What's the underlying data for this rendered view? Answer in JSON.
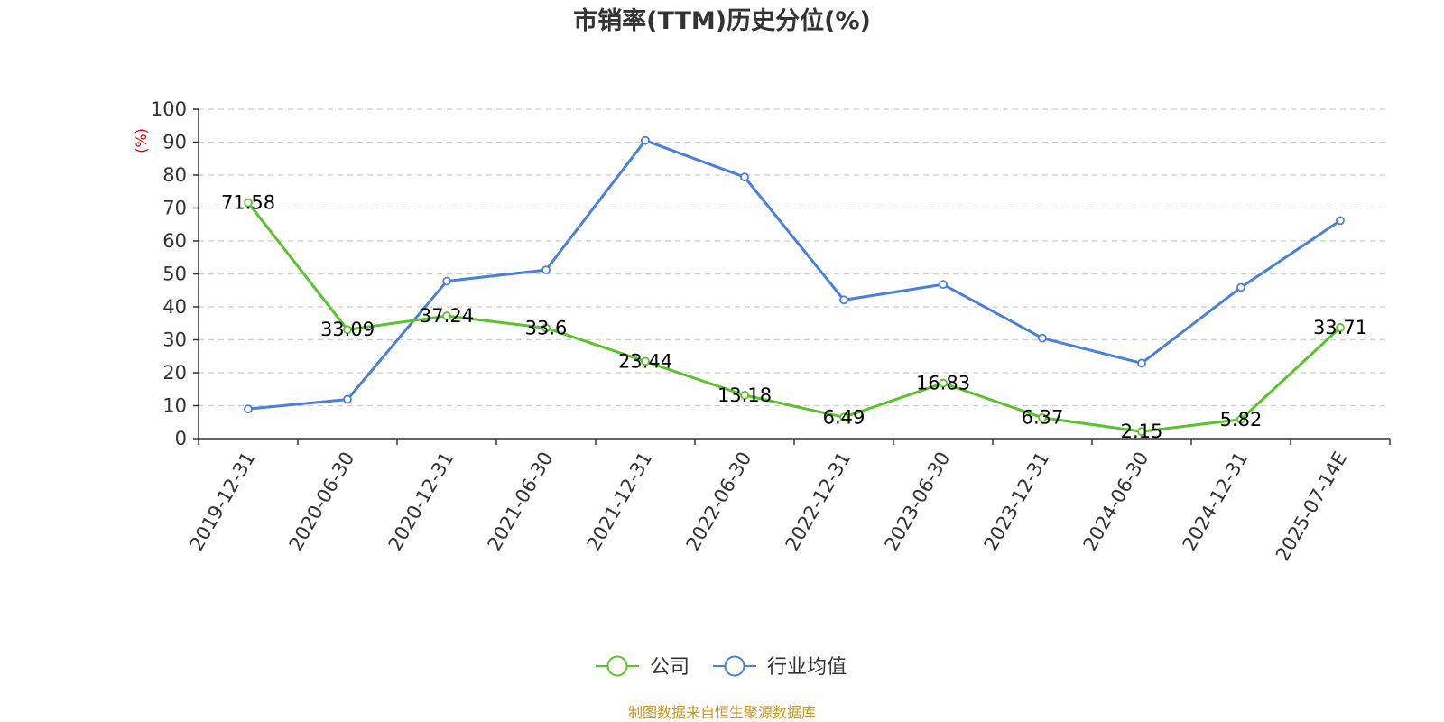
{
  "chart_data": {
    "type": "line",
    "title": "市销率(TTM)历史分位(%)",
    "ylabel": "(%)",
    "xlabel": "",
    "ylim": [
      0,
      100
    ],
    "yticks": [
      0,
      10,
      20,
      30,
      40,
      50,
      60,
      70,
      80,
      90,
      100
    ],
    "grid": true,
    "legend_position": "bottom-center",
    "categories": [
      "2019-12-31",
      "2020-06-30",
      "2020-12-31",
      "2021-06-30",
      "2021-12-31",
      "2022-06-30",
      "2022-12-31",
      "2023-06-30",
      "2023-12-31",
      "2024-06-30",
      "2024-12-31",
      "2025-07-14E"
    ],
    "series": [
      {
        "name": "公司",
        "color": "#5cc22c",
        "values": [
          71.58,
          33.09,
          37.24,
          33.6,
          23.44,
          13.18,
          6.49,
          16.83,
          6.37,
          2.15,
          5.82,
          33.71
        ],
        "labels": [
          "71.58",
          "33.09",
          "37.24",
          "33.6",
          "23.44",
          "13.18",
          "6.49",
          "16.83",
          "6.37",
          "2.15",
          "5.82",
          "33.71"
        ]
      },
      {
        "name": "行业均值",
        "color": "#4a7fdc",
        "values": [
          9.0,
          11.9,
          47.8,
          51.2,
          90.5,
          79.4,
          42.1,
          46.8,
          30.5,
          22.9,
          45.9,
          66.2
        ]
      }
    ],
    "source": "制图数据来自恒生聚源数据库"
  }
}
